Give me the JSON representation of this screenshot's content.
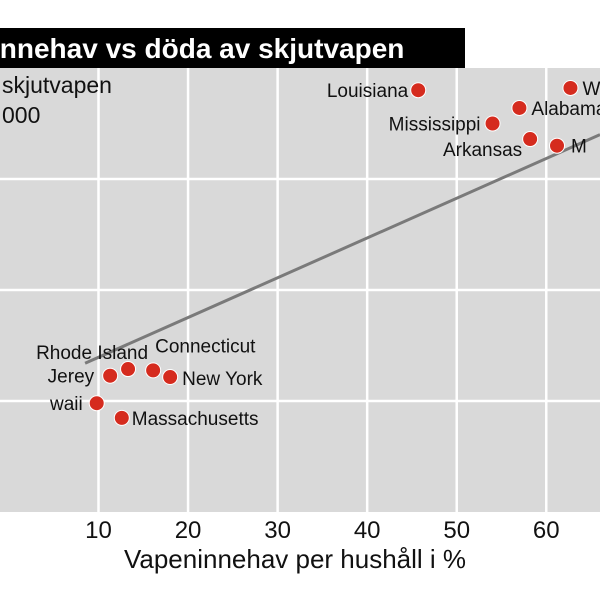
{
  "chart_data": {
    "type": "scatter",
    "title": "innehav vs döda av skjutvapen",
    "ylabel_lines": [
      "skjutvapen",
      "000"
    ],
    "xlabel": "Vapeninnehav per hushåll i %",
    "xlim": [
      -1,
      66
    ],
    "ylim": [
      0,
      100
    ],
    "x_ticks": [
      10,
      20,
      30,
      40,
      50,
      60
    ],
    "y_gridlines": [
      75,
      50,
      25
    ],
    "grid": true,
    "trendline": {
      "x1": 8.5,
      "y1": 33.5,
      "x2": 66,
      "y2": 85
    },
    "colors": {
      "plot_background": "#d9d9d9",
      "point": "#d52b1e",
      "point_stroke": "#ffffff",
      "title_bar": "#000000",
      "trendline": "#7a7a7a",
      "grid": "#ffffff"
    },
    "points": [
      {
        "label": "Louisiana",
        "x": 45.7,
        "y": 95
      },
      {
        "label": "Mississippi",
        "x": 54,
        "y": 87.5
      },
      {
        "label": "Alabama",
        "x": 57,
        "y": 91
      },
      {
        "label": "Arkansas",
        "x": 58.2,
        "y": 84
      },
      {
        "label": "W",
        "x": 62.7,
        "y": 95.5
      },
      {
        "label": "M",
        "x": 61.2,
        "y": 82.5
      },
      {
        "label": "Rhode Island",
        "x": 13.3,
        "y": 32.2
      },
      {
        "label": "Connecticut",
        "x": 16.1,
        "y": 31.9
      },
      {
        "label": "New York",
        "x": 18,
        "y": 30.4
      },
      {
        "label": "Jerey",
        "x": 11.3,
        "y": 30.7
      },
      {
        "label": "waii",
        "x": 9.8,
        "y": 24.5
      },
      {
        "label": "Massachusetts",
        "x": 12.6,
        "y": 21.2
      }
    ]
  }
}
